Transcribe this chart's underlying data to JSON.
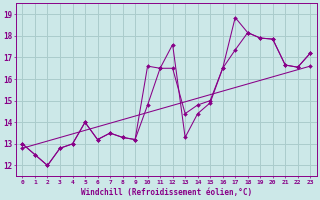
{
  "xlabel": "Windchill (Refroidissement éolien,°C)",
  "xlim": [
    -0.5,
    23.5
  ],
  "ylim": [
    11.5,
    19.5
  ],
  "xticks": [
    0,
    1,
    2,
    3,
    4,
    5,
    6,
    7,
    8,
    9,
    10,
    11,
    12,
    13,
    14,
    15,
    16,
    17,
    18,
    19,
    20,
    21,
    22,
    23
  ],
  "yticks": [
    12,
    13,
    14,
    15,
    16,
    17,
    18,
    19
  ],
  "bg_color": "#cce8e8",
  "line_color": "#880088",
  "grid_color": "#aacccc",
  "line1_y": [
    13.0,
    12.5,
    12.0,
    12.8,
    13.0,
    14.0,
    13.2,
    13.5,
    13.3,
    13.2,
    16.6,
    16.5,
    17.6,
    13.3,
    14.4,
    14.9,
    16.5,
    18.85,
    18.15,
    17.9,
    17.85,
    16.65,
    16.55,
    17.2
  ],
  "line2_y": [
    13.0,
    12.5,
    12.0,
    12.8,
    13.0,
    14.0,
    13.2,
    13.5,
    13.3,
    13.2,
    14.8,
    16.5,
    16.5,
    14.4,
    14.8,
    15.0,
    16.5,
    17.35,
    18.15,
    17.9,
    17.85,
    16.65,
    16.55,
    17.2
  ],
  "trend_x": [
    0,
    23
  ],
  "trend_y": [
    12.8,
    16.6
  ]
}
